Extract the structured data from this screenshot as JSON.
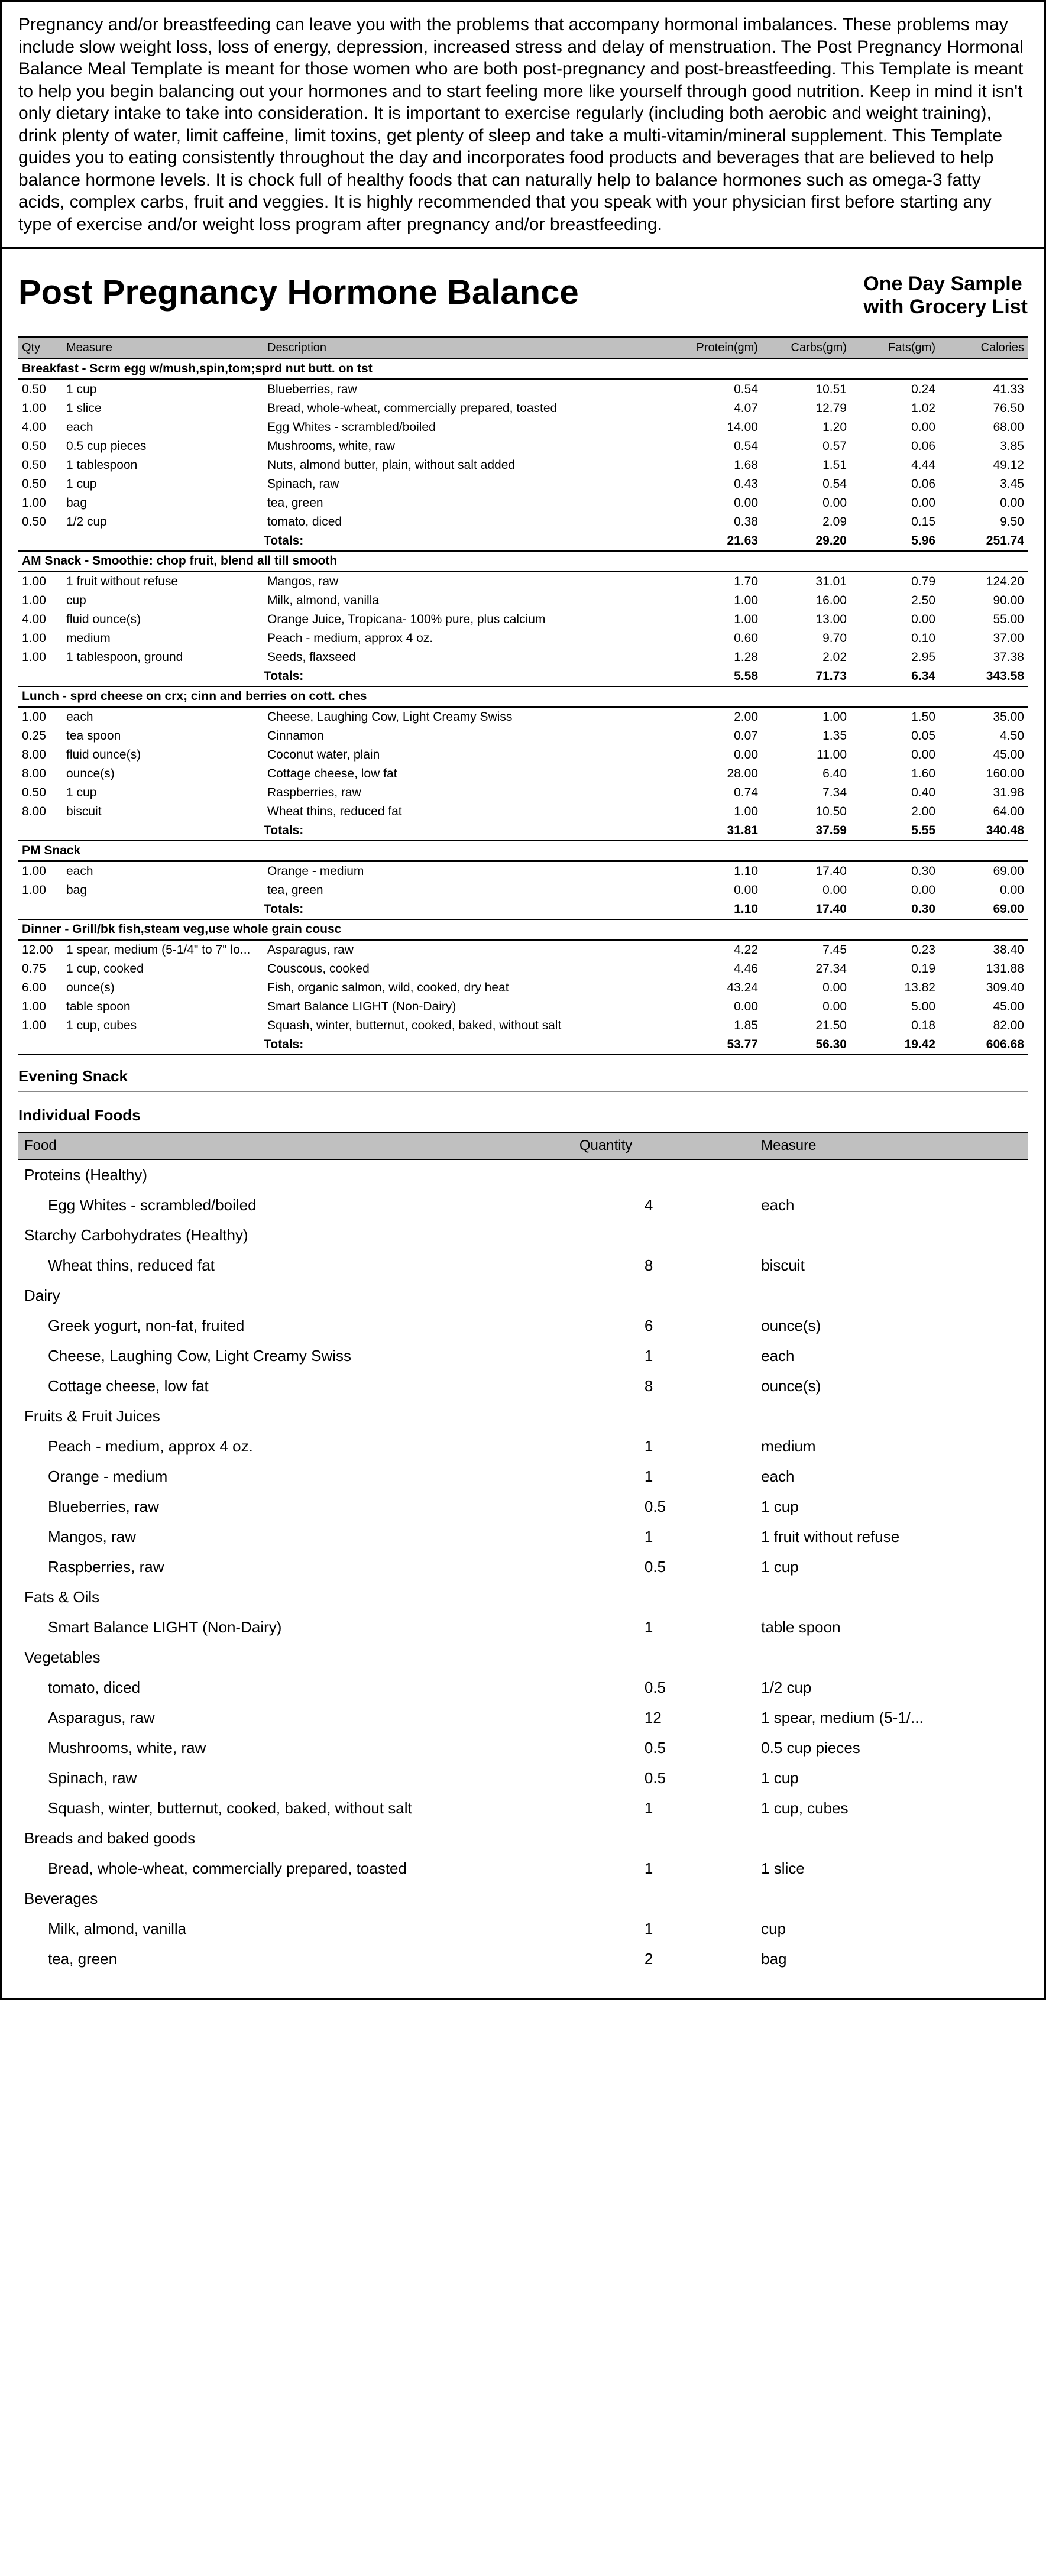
{
  "intro": "Pregnancy and/or breastfeeding can leave you with the problems that accompany hormonal imbalances. These problems may include slow weight loss, loss of energy, depression, increased stress and delay of menstruation. The Post Pregnancy Hormonal Balance Meal Template is meant for those women who are both post-pregnancy and post-breastfeeding.  This Template is meant to help you begin balancing out your hormones and to start feeling more like yourself through good nutrition. Keep in mind it isn't only dietary intake to take into consideration.  It is important to exercise regularly (including both aerobic and weight training), drink plenty of water, limit caffeine, limit toxins, get plenty of sleep and take a multi-vitamin/mineral supplement.  This Template guides you to eating consistently throughout the day and incorporates food products and beverages that are believed to help balance hormone levels.  It is chock full of healthy foods that can naturally help to balance hormones such as omega-3 fatty acids, complex carbs, fruit and veggies.  It is highly recommended that you speak with your physician first before starting any type of exercise and/or weight loss program after pregnancy and/or breastfeeding.",
  "title": "Post Pregnancy Hormone Balance",
  "subtitle_line1": "One Day Sample",
  "subtitle_line2": "with Grocery List",
  "columns": {
    "qty": "Qty",
    "measure": "Measure",
    "desc": "Description",
    "protein": "Protein(gm)",
    "carbs": "Carbs(gm)",
    "fats": "Fats(gm)",
    "cal": "Calories"
  },
  "totals_label": "Totals:",
  "sections": [
    {
      "name": "Breakfast - Scrm egg w/mush,spin,tom;sprd nut butt. on tst",
      "rows": [
        [
          "0.50",
          "1 cup",
          "Blueberries, raw",
          "0.54",
          "10.51",
          "0.24",
          "41.33"
        ],
        [
          "1.00",
          "1 slice",
          "Bread, whole-wheat, commercially prepared, toasted",
          "4.07",
          "12.79",
          "1.02",
          "76.50"
        ],
        [
          "4.00",
          "each",
          "Egg Whites - scrambled/boiled",
          "14.00",
          "1.20",
          "0.00",
          "68.00"
        ],
        [
          "0.50",
          "0.5 cup pieces",
          "Mushrooms, white, raw",
          "0.54",
          "0.57",
          "0.06",
          "3.85"
        ],
        [
          "0.50",
          "1 tablespoon",
          "Nuts, almond butter, plain, without salt added",
          "1.68",
          "1.51",
          "4.44",
          "49.12"
        ],
        [
          "0.50",
          "1 cup",
          "Spinach, raw",
          "0.43",
          "0.54",
          "0.06",
          "3.45"
        ],
        [
          "1.00",
          "bag",
          "tea, green",
          "0.00",
          "0.00",
          "0.00",
          "0.00"
        ],
        [
          "0.50",
          "1/2 cup",
          "tomato, diced",
          "0.38",
          "2.09",
          "0.15",
          "9.50"
        ]
      ],
      "totals": [
        "21.63",
        "29.20",
        "5.96",
        "251.74"
      ]
    },
    {
      "name": "AM Snack - Smoothie: chop fruit, blend all till smooth",
      "rows": [
        [
          "1.00",
          "1 fruit without refuse",
          "Mangos, raw",
          "1.70",
          "31.01",
          "0.79",
          "124.20"
        ],
        [
          "1.00",
          "cup",
          "Milk, almond, vanilla",
          "1.00",
          "16.00",
          "2.50",
          "90.00"
        ],
        [
          "4.00",
          "fluid ounce(s)",
          "Orange Juice, Tropicana- 100% pure, plus calcium",
          "1.00",
          "13.00",
          "0.00",
          "55.00"
        ],
        [
          "1.00",
          "medium",
          "Peach - medium, approx 4 oz.",
          "0.60",
          "9.70",
          "0.10",
          "37.00"
        ],
        [
          "1.00",
          "1 tablespoon, ground",
          "Seeds, flaxseed",
          "1.28",
          "2.02",
          "2.95",
          "37.38"
        ]
      ],
      "totals": [
        "5.58",
        "71.73",
        "6.34",
        "343.58"
      ]
    },
    {
      "name": "Lunch - sprd cheese on crx; cinn and berries on cott. ches",
      "rows": [
        [
          "1.00",
          "each",
          "Cheese, Laughing Cow, Light Creamy Swiss",
          "2.00",
          "1.00",
          "1.50",
          "35.00"
        ],
        [
          "0.25",
          "tea spoon",
          "Cinnamon",
          "0.07",
          "1.35",
          "0.05",
          "4.50"
        ],
        [
          "8.00",
          "fluid ounce(s)",
          "Coconut water, plain",
          "0.00",
          "11.00",
          "0.00",
          "45.00"
        ],
        [
          "8.00",
          "ounce(s)",
          "Cottage cheese, low fat",
          "28.00",
          "6.40",
          "1.60",
          "160.00"
        ],
        [
          "0.50",
          "1 cup",
          "Raspberries, raw",
          "0.74",
          "7.34",
          "0.40",
          "31.98"
        ],
        [
          "8.00",
          "biscuit",
          "Wheat thins, reduced fat",
          "1.00",
          "10.50",
          "2.00",
          "64.00"
        ]
      ],
      "totals": [
        "31.81",
        "37.59",
        "5.55",
        "340.48"
      ]
    },
    {
      "name": "PM Snack",
      "rows": [
        [
          "1.00",
          "each",
          "Orange - medium",
          "1.10",
          "17.40",
          "0.30",
          "69.00"
        ],
        [
          "1.00",
          "bag",
          "tea, green",
          "0.00",
          "0.00",
          "0.00",
          "0.00"
        ]
      ],
      "totals": [
        "1.10",
        "17.40",
        "0.30",
        "69.00"
      ]
    },
    {
      "name": "Dinner - Grill/bk fish,steam veg,use whole grain cousc",
      "rows": [
        [
          "12.00",
          "1 spear, medium (5-1/4\" to 7\" lo...",
          "Asparagus, raw",
          "4.22",
          "7.45",
          "0.23",
          "38.40"
        ],
        [
          "0.75",
          "1 cup, cooked",
          "Couscous, cooked",
          "4.46",
          "27.34",
          "0.19",
          "131.88"
        ],
        [
          "6.00",
          "ounce(s)",
          "Fish, organic salmon, wild, cooked, dry heat",
          "43.24",
          "0.00",
          "13.82",
          "309.40"
        ],
        [
          "1.00",
          "table spoon",
          "Smart Balance LIGHT (Non-Dairy)",
          "0.00",
          "0.00",
          "5.00",
          "45.00"
        ],
        [
          "1.00",
          "1 cup, cubes",
          "Squash, winter, butternut, cooked, baked, without salt",
          "1.85",
          "21.50",
          "0.18",
          "82.00"
        ]
      ],
      "totals": [
        "53.77",
        "56.30",
        "19.42",
        "606.68"
      ]
    }
  ],
  "evening_snack": "Evening Snack",
  "individual_foods": "Individual Foods",
  "grocery_columns": {
    "food": "Food",
    "qty": "Quantity",
    "measure": "Measure"
  },
  "grocery": [
    {
      "cat": "Proteins (Healthy)",
      "items": [
        [
          "Egg Whites - scrambled/boiled",
          "4",
          "each"
        ]
      ]
    },
    {
      "cat": "Starchy Carbohydrates (Healthy)",
      "items": [
        [
          "Wheat thins, reduced fat",
          "8",
          "biscuit"
        ]
      ]
    },
    {
      "cat": "Dairy",
      "items": [
        [
          "Greek yogurt, non-fat, fruited",
          "6",
          "ounce(s)"
        ],
        [
          "Cheese, Laughing Cow, Light Creamy Swiss",
          "1",
          "each"
        ],
        [
          "Cottage cheese, low fat",
          "8",
          "ounce(s)"
        ]
      ]
    },
    {
      "cat": "Fruits & Fruit Juices",
      "items": [
        [
          "Peach - medium, approx 4 oz.",
          "1",
          "medium"
        ],
        [
          "Orange - medium",
          "1",
          "each"
        ],
        [
          "Blueberries, raw",
          "0.5",
          "1 cup"
        ],
        [
          "Mangos, raw",
          "1",
          "1 fruit without refuse"
        ],
        [
          "Raspberries, raw",
          "0.5",
          "1 cup"
        ]
      ]
    },
    {
      "cat": "Fats & Oils",
      "items": [
        [
          "Smart Balance LIGHT (Non-Dairy)",
          "1",
          "table spoon"
        ]
      ]
    },
    {
      "cat": "Vegetables",
      "items": [
        [
          "tomato, diced",
          "0.5",
          "1/2 cup"
        ],
        [
          "Asparagus, raw",
          "12",
          "1 spear, medium (5-1/..."
        ],
        [
          "Mushrooms, white, raw",
          "0.5",
          "0.5 cup pieces"
        ],
        [
          "Spinach, raw",
          "0.5",
          "1 cup"
        ],
        [
          "Squash, winter, butternut, cooked, baked, without salt",
          "1",
          "1 cup, cubes"
        ]
      ]
    },
    {
      "cat": "Breads and baked goods",
      "items": [
        [
          "Bread, whole-wheat, commercially prepared, toasted",
          "1",
          "1 slice"
        ]
      ]
    },
    {
      "cat": "Beverages",
      "items": [
        [
          "Milk, almond, vanilla",
          "1",
          "cup"
        ],
        [
          "tea, green",
          "2",
          "bag"
        ]
      ]
    }
  ]
}
